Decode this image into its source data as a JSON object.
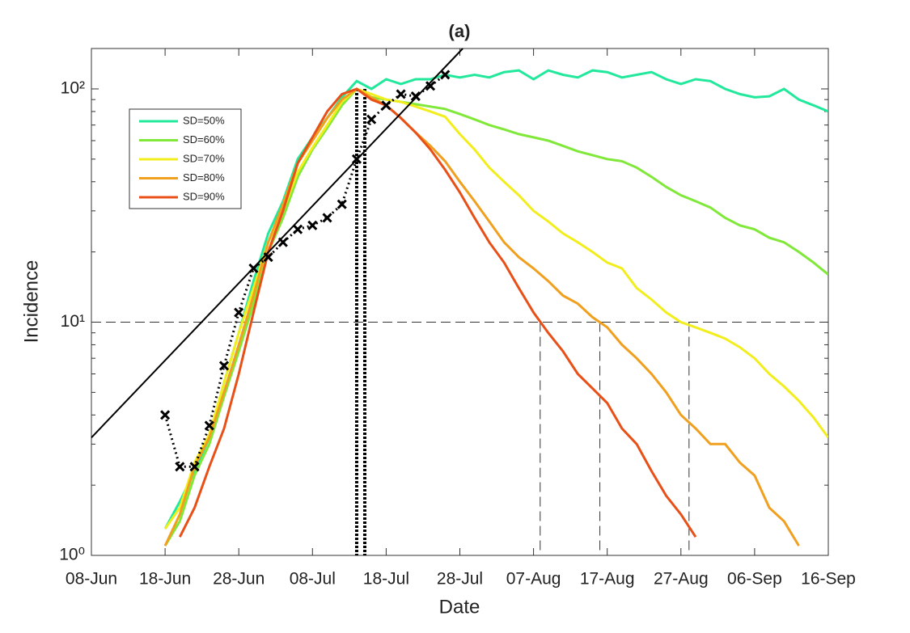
{
  "chart_data": {
    "type": "line",
    "title": "(a)",
    "x_label": "Date",
    "y_label": "Incidence",
    "log_y": true,
    "categories": [
      "08-Jun",
      null,
      null,
      null,
      null,
      "18-Jun",
      null,
      null,
      null,
      null,
      "28-Jun",
      null,
      null,
      null,
      null,
      "08-Jul",
      null,
      null,
      null,
      null,
      "18-Jul",
      null,
      null,
      null,
      null,
      "28-Jul",
      null,
      null,
      null,
      null,
      "07-Aug",
      null,
      null,
      null,
      null,
      "17-Aug",
      null,
      null,
      null,
      null,
      "27-Aug",
      null,
      null,
      null,
      null,
      "06-Sep",
      null,
      null,
      null,
      null,
      "16-Sep"
    ],
    "ylim": [
      1,
      149
    ],
    "yticks": [
      {
        "value": 1,
        "label": "10⁰"
      },
      {
        "value": 10,
        "label": "10¹"
      },
      {
        "value": 100,
        "label": "10²"
      }
    ],
    "minor_yticks": [
      2,
      3,
      4,
      5,
      6,
      7,
      8,
      9,
      20,
      30,
      40,
      50,
      60,
      70,
      80,
      90
    ],
    "legend_position": "upper-left",
    "series": [
      {
        "name": "SD=50%",
        "color": "#22e89c",
        "values": [
          null,
          null,
          null,
          null,
          null,
          1.3,
          1.7,
          2.3,
          3.2,
          5.5,
          9,
          15,
          24,
          33,
          50,
          62,
          75,
          92,
          108,
          100,
          110,
          105,
          110,
          110,
          115,
          112,
          115,
          112,
          118,
          120,
          110,
          120,
          115,
          112,
          120,
          118,
          112,
          115,
          118,
          110,
          105,
          110,
          108,
          100,
          95,
          92,
          93,
          100,
          90,
          85,
          80
        ]
      },
      {
        "name": "SD=60%",
        "color": "#80e838",
        "values": [
          null,
          null,
          null,
          null,
          null,
          1.1,
          1.4,
          2.2,
          3,
          4.8,
          7.5,
          12,
          20,
          28,
          42,
          55,
          68,
          85,
          100,
          92,
          90,
          88,
          86,
          84,
          82,
          78,
          74,
          70,
          67,
          64,
          62,
          60,
          57,
          54,
          52,
          50,
          49,
          46,
          42,
          38,
          35,
          33,
          31,
          28,
          26,
          25,
          23,
          22,
          20,
          18,
          16
        ]
      },
      {
        "name": "SD=70%",
        "color": "#f2ee1e",
        "values": [
          null,
          null,
          null,
          null,
          null,
          1.3,
          1.6,
          2.5,
          3.3,
          5.5,
          9,
          14,
          22,
          30,
          44,
          56,
          70,
          88,
          100,
          95,
          90,
          88,
          84,
          80,
          76,
          64,
          55,
          46,
          40,
          35,
          30,
          27,
          24,
          22,
          20,
          18,
          17,
          14,
          12.5,
          11,
          10,
          9.5,
          9,
          8.5,
          7.8,
          7,
          6,
          5.3,
          4.6,
          3.9,
          3.2
        ]
      },
      {
        "name": "SD=80%",
        "color": "#f0a01e",
        "values": [
          null,
          null,
          null,
          null,
          null,
          1.1,
          1.5,
          2.4,
          3.2,
          5,
          8,
          13,
          22,
          32,
          48,
          60,
          75,
          90,
          100,
          92,
          85,
          75,
          65,
          57,
          49,
          40,
          33,
          27,
          22,
          19,
          17,
          15,
          13,
          12,
          10.5,
          9.5,
          8,
          7,
          6,
          5,
          4,
          3.5,
          3,
          3,
          2.5,
          2.2,
          1.6,
          1.4,
          1.1,
          null,
          null
        ]
      },
      {
        "name": "SD=90%",
        "color": "#e85018",
        "values": [
          null,
          null,
          null,
          null,
          null,
          null,
          1.2,
          1.6,
          2.4,
          3.5,
          6,
          11,
          20,
          30,
          48,
          62,
          80,
          95,
          100,
          90,
          85,
          75,
          65,
          55,
          45,
          36,
          28,
          22,
          18,
          14,
          11,
          9,
          7.5,
          6,
          5.2,
          4.5,
          3.5,
          3,
          2.3,
          1.8,
          1.5,
          1.2,
          null,
          null,
          null,
          null,
          null,
          null,
          null,
          null,
          null
        ]
      }
    ],
    "observed": {
      "color": "#000000",
      "values": [
        null,
        null,
        null,
        null,
        null,
        4,
        2.4,
        2.4,
        3.6,
        6.5,
        11,
        17,
        19,
        22,
        25,
        26,
        28,
        32,
        50,
        74,
        85,
        95,
        93,
        103,
        115,
        null,
        null,
        null,
        null,
        null,
        null,
        null,
        null,
        null,
        null,
        null,
        null,
        null,
        null,
        null,
        null,
        null,
        null,
        null,
        null,
        null,
        null,
        null,
        null,
        null,
        null
      ]
    },
    "trend_line": [
      [
        0,
        3.2
      ],
      [
        25.2,
        149
      ]
    ],
    "horizontal_dashed": 10,
    "vertical_dotted": [
      18,
      18.55
    ],
    "vertical_dashed": [
      30.45,
      34.5,
      40.55
    ]
  }
}
